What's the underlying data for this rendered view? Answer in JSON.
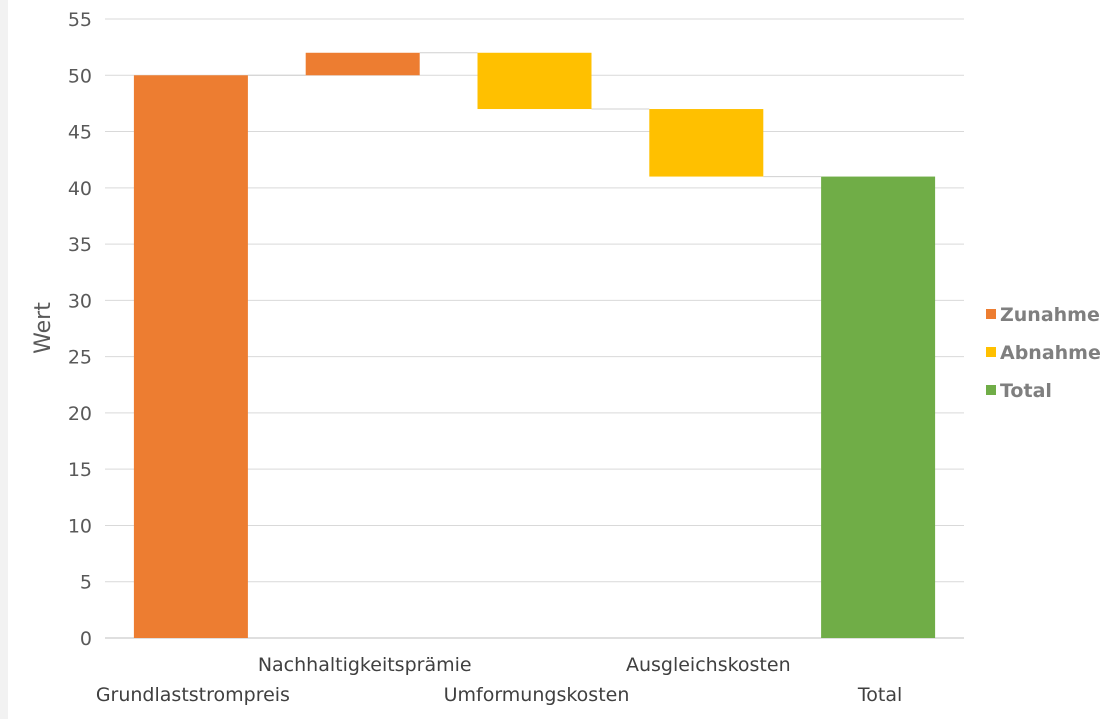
{
  "chart_data": {
    "type": "bar",
    "subtype": "waterfall",
    "ylabel": "Wert",
    "ylim": [
      0,
      55
    ],
    "yticks": [
      0,
      5,
      10,
      15,
      20,
      25,
      30,
      35,
      40,
      45,
      50,
      55
    ],
    "grid": true,
    "legend_position": "right",
    "categories": [
      "Grundlaststrompreis",
      "Nachhaltigkeitsprämie",
      "Umformungskosten",
      "Ausgleichskosten",
      "Total"
    ],
    "bars": [
      {
        "category": "Grundlaststrompreis",
        "start": 0,
        "end": 50,
        "kind": "Zunahme"
      },
      {
        "category": "Nachhaltigkeitsprämie",
        "start": 50,
        "end": 52,
        "kind": "Zunahme"
      },
      {
        "category": "Umformungskosten",
        "start": 52,
        "end": 47,
        "kind": "Abnahme"
      },
      {
        "category": "Ausgleichskosten",
        "start": 47,
        "end": 41,
        "kind": "Abnahme"
      },
      {
        "category": "Total",
        "start": 0,
        "end": 41,
        "kind": "Total"
      }
    ],
    "legend": [
      {
        "label": "Zunahme",
        "color": "#ED7D31"
      },
      {
        "label": "Abnahme",
        "color": "#FFC000"
      },
      {
        "label": "Total",
        "color": "#70AD47"
      }
    ]
  }
}
